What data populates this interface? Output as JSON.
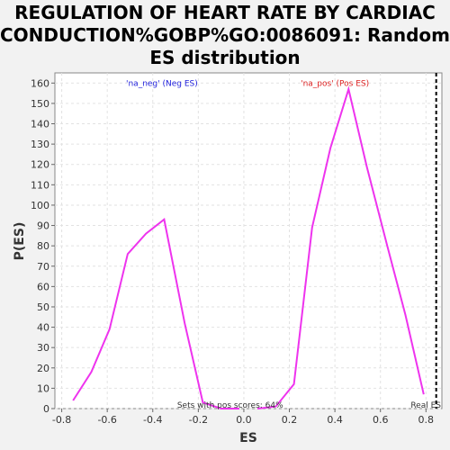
{
  "chart_data": {
    "type": "line",
    "title_lines": [
      "REGULATION OF HEART RATE BY CARDIAC",
      "CONDUCTION%GOBP%GO:0086091: Random",
      "ES distribution"
    ],
    "xlabel": "ES",
    "ylabel": "P(ES)",
    "xlim": [
      -0.83,
      0.87
    ],
    "ylim": [
      0,
      165
    ],
    "xticks": [
      -0.8,
      -0.6,
      -0.4,
      -0.2,
      0.0,
      0.2,
      0.4,
      0.6,
      0.8
    ],
    "xtick_labels": [
      "-0.8",
      "-0.6",
      "-0.4",
      "-0.2",
      "0.0",
      "0.2",
      "0.4",
      "0.6",
      "0.8"
    ],
    "yticks": [
      0,
      10,
      20,
      30,
      40,
      50,
      60,
      70,
      80,
      90,
      100,
      110,
      120,
      130,
      140,
      150,
      160
    ],
    "grid": true,
    "line_color": "#ee33ee",
    "series": [
      {
        "id": "neg",
        "points": [
          [
            -0.75,
            4
          ],
          [
            -0.67,
            18
          ],
          [
            -0.59,
            39
          ],
          [
            -0.51,
            76
          ],
          [
            -0.43,
            86
          ],
          [
            -0.35,
            93
          ],
          [
            -0.26,
            42
          ],
          [
            -0.18,
            3
          ],
          [
            -0.1,
            0
          ],
          [
            -0.02,
            0
          ]
        ]
      },
      {
        "id": "pos",
        "points": [
          [
            0.06,
            0
          ],
          [
            0.14,
            1
          ],
          [
            0.22,
            12
          ],
          [
            0.3,
            89
          ],
          [
            0.38,
            128
          ],
          [
            0.46,
            157
          ],
          [
            0.54,
            119
          ],
          [
            0.63,
            80
          ],
          [
            0.71,
            46
          ],
          [
            0.79,
            7
          ]
        ]
      }
    ],
    "real_es": 0.845,
    "annotations": {
      "neg_label": "'na_neg' (Neg ES)",
      "neg_color": "#2222dd",
      "pos_label": "'na_pos' (Pos ES)",
      "pos_color": "#dd2222",
      "sets_with_pos": "Sets with pos scores: 64%",
      "real_es_label": "Real ES"
    }
  }
}
